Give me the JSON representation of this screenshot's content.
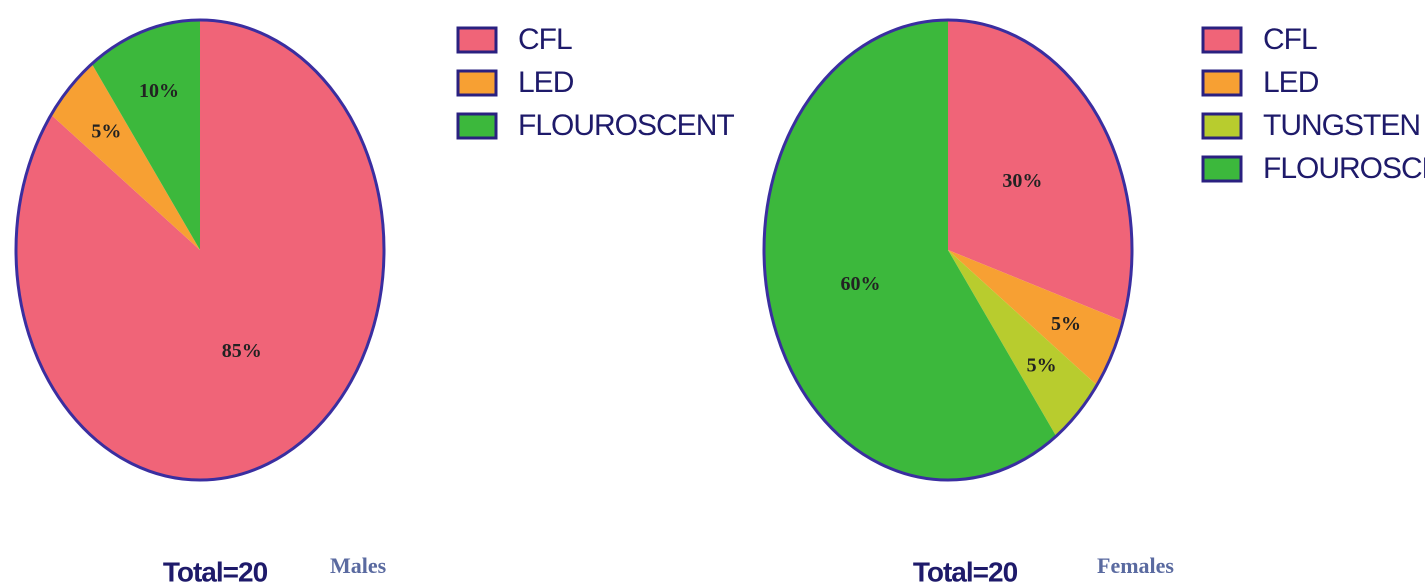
{
  "chart_data": [
    {
      "type": "pie",
      "title": "Males",
      "total_label": "Total=20",
      "categories": [
        "CFL",
        "LED",
        "FLOUROSCENT"
      ],
      "values": [
        85,
        5,
        10
      ],
      "value_labels": [
        "85%",
        "5%",
        "10%"
      ],
      "colors": [
        "#f06478",
        "#f7a033",
        "#3cb83c"
      ]
    },
    {
      "type": "pie",
      "title": "Females",
      "total_label": "Total=20",
      "categories": [
        "CFL",
        "LED",
        "TUNGSTEN",
        "FLOUROSCENT"
      ],
      "values": [
        30,
        5,
        5,
        60
      ],
      "value_labels": [
        "30%",
        "5%",
        "5%",
        "60%"
      ],
      "colors": [
        "#f06478",
        "#f7a033",
        "#b8cc2e",
        "#3cb83c"
      ]
    }
  ]
}
